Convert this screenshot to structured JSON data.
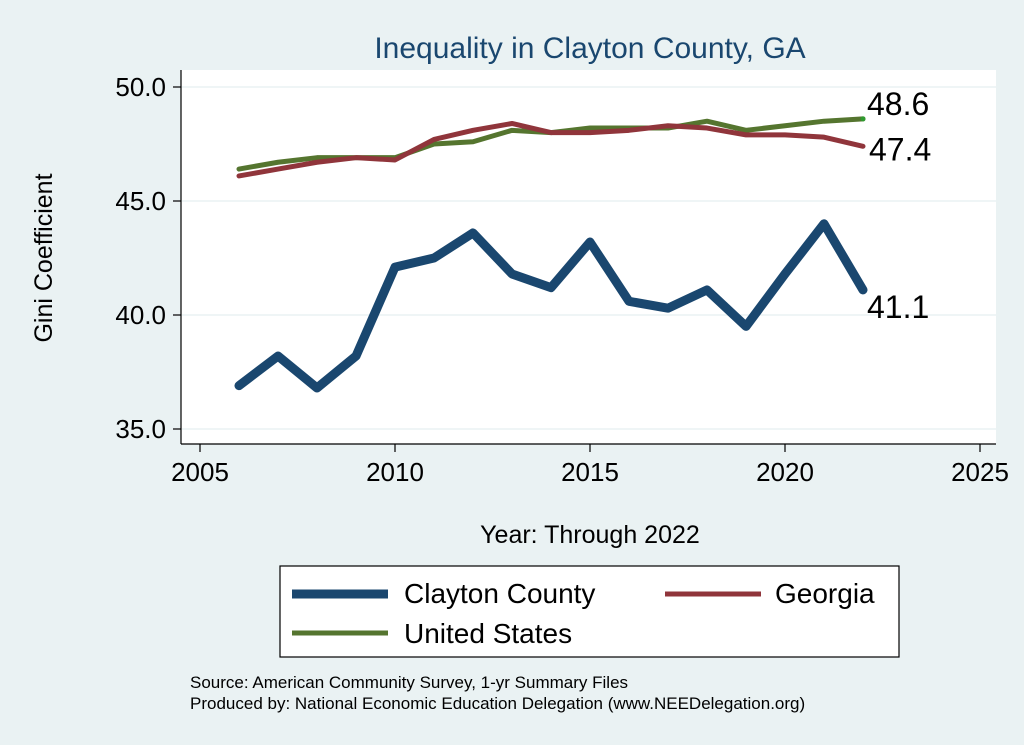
{
  "chart_data": {
    "type": "line",
    "title": "Inequality in Clayton County, GA",
    "xlabel": "Year: Through 2022",
    "ylabel": "Gini Coefficient",
    "xlim": [
      2005,
      2025
    ],
    "ylim": [
      35,
      50
    ],
    "xticks": [
      "2005",
      "2010",
      "2015",
      "2020",
      "2025"
    ],
    "yticks": [
      "35.0",
      "40.0",
      "45.0",
      "50.0"
    ],
    "x": [
      2006,
      2007,
      2008,
      2009,
      2010,
      2011,
      2012,
      2013,
      2014,
      2015,
      2016,
      2017,
      2018,
      2019,
      2020,
      2021,
      2022
    ],
    "series": [
      {
        "name": "Clayton County",
        "color": "#1a476f",
        "values": [
          36.9,
          38.2,
          36.8,
          38.2,
          42.1,
          42.5,
          43.6,
          41.8,
          41.2,
          43.2,
          40.6,
          40.3,
          41.1,
          39.5,
          41.8,
          44.0,
          41.1
        ],
        "end_label": "41.1"
      },
      {
        "name": "Georgia",
        "color": "#90353b",
        "values": [
          46.1,
          46.4,
          46.7,
          46.9,
          46.8,
          47.7,
          48.1,
          48.4,
          48.0,
          48.0,
          48.1,
          48.3,
          48.2,
          47.9,
          47.9,
          47.8,
          47.4
        ],
        "end_label": "47.4"
      },
      {
        "name": "United States",
        "color": "#55752f",
        "values": [
          46.4,
          46.7,
          46.9,
          46.9,
          46.9,
          47.5,
          47.6,
          48.1,
          48.0,
          48.2,
          48.2,
          48.2,
          48.5,
          48.1,
          48.3,
          48.5,
          48.6
        ],
        "end_label": "48.6"
      }
    ],
    "legend": [
      "Clayton County",
      "Georgia",
      "United States"
    ],
    "notes": [
      "Source: American Community Survey, 1-yr Summary Files",
      "Produced by: National Economic Education Delegation (www.NEEDelegation.org)"
    ]
  }
}
